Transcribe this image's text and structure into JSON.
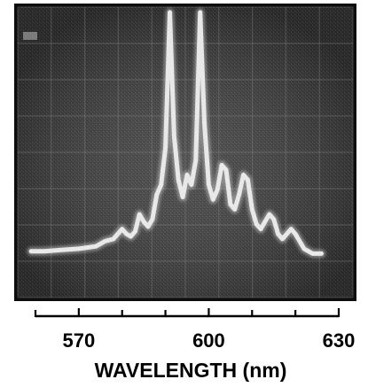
{
  "chart_data": {
    "type": "line",
    "title": "",
    "xlabel": "WAVELENGTH (nm)",
    "ylabel": "",
    "xlim": [
      560,
      630
    ],
    "x_ticks": [
      570,
      600,
      630
    ],
    "grid": true,
    "series": [
      {
        "x": [
          559,
          562,
          566,
          570,
          574,
          576,
          578,
          580,
          581,
          582,
          583,
          584,
          585,
          586,
          587,
          588,
          589,
          590,
          591,
          592,
          593,
          594,
          595,
          596,
          597,
          598,
          599,
          600,
          601,
          602,
          603,
          604,
          605,
          606,
          607,
          608,
          609,
          610,
          611,
          612,
          613,
          614,
          615,
          616,
          617,
          618,
          619,
          620,
          621,
          622,
          623,
          624,
          625,
          626
        ],
        "y": [
          0.03,
          0.03,
          0.035,
          0.04,
          0.05,
          0.07,
          0.08,
          0.12,
          0.1,
          0.09,
          0.11,
          0.18,
          0.15,
          0.13,
          0.16,
          0.26,
          0.3,
          0.45,
          1.0,
          0.5,
          0.32,
          0.25,
          0.34,
          0.3,
          0.4,
          1.0,
          0.55,
          0.3,
          0.24,
          0.28,
          0.38,
          0.36,
          0.22,
          0.2,
          0.26,
          0.34,
          0.32,
          0.2,
          0.14,
          0.12,
          0.15,
          0.18,
          0.16,
          0.1,
          0.08,
          0.1,
          0.12,
          0.1,
          0.07,
          0.04,
          0.03,
          0.02,
          0.02,
          0.02
        ]
      }
    ]
  }
}
